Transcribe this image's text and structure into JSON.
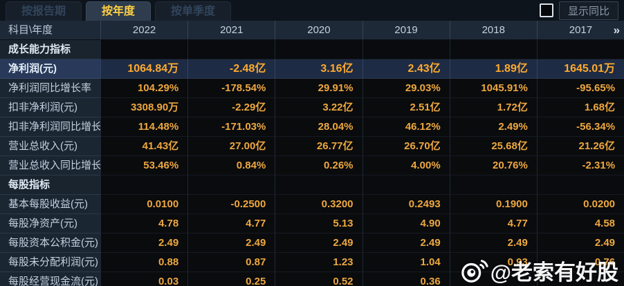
{
  "tabs": [
    {
      "label": "按报告期",
      "active": false
    },
    {
      "label": "按年度",
      "active": true
    },
    {
      "label": "按单季度",
      "active": false
    }
  ],
  "controls": {
    "show_yoy_label": "显示同比",
    "checkbox_checked": false
  },
  "table": {
    "corner_header": "科目\\年度",
    "years": [
      "2022",
      "2021",
      "2020",
      "2019",
      "2018",
      "2017"
    ],
    "more_icon": "»",
    "rows": [
      {
        "type": "section",
        "label": "成长能力指标"
      },
      {
        "type": "data",
        "highlight": true,
        "label": "净利润(元)",
        "values": [
          "1064.84万",
          "-2.48亿",
          "3.16亿",
          "2.43亿",
          "1.89亿",
          "1645.01万"
        ]
      },
      {
        "type": "data",
        "label": "净利润同比增长率",
        "values": [
          "104.29%",
          "-178.54%",
          "29.91%",
          "29.03%",
          "1045.91%",
          "-95.65%"
        ]
      },
      {
        "type": "data",
        "label": "扣非净利润(元)",
        "values": [
          "3308.90万",
          "-2.29亿",
          "3.22亿",
          "2.51亿",
          "1.72亿",
          "1.68亿"
        ]
      },
      {
        "type": "data",
        "label": "扣非净利润同比增长率",
        "values": [
          "114.48%",
          "-171.03%",
          "28.04%",
          "46.12%",
          "2.49%",
          "-56.34%"
        ]
      },
      {
        "type": "data",
        "label": "营业总收入(元)",
        "values": [
          "41.43亿",
          "27.00亿",
          "26.77亿",
          "26.70亿",
          "25.68亿",
          "21.26亿"
        ]
      },
      {
        "type": "data",
        "label": "营业总收入同比增长率",
        "values": [
          "53.46%",
          "0.84%",
          "0.26%",
          "4.00%",
          "20.76%",
          "-2.31%"
        ]
      },
      {
        "type": "section",
        "label": "每股指标"
      },
      {
        "type": "data",
        "label": "基本每股收益(元)",
        "values": [
          "0.0100",
          "-0.2500",
          "0.3200",
          "0.2493",
          "0.1900",
          "0.0200"
        ]
      },
      {
        "type": "data",
        "label": "每股净资产(元)",
        "values": [
          "4.78",
          "4.77",
          "5.13",
          "4.90",
          "4.77",
          "4.58"
        ]
      },
      {
        "type": "data",
        "label": "每股资本公积金(元)",
        "values": [
          "2.49",
          "2.49",
          "2.49",
          "2.49",
          "2.49",
          "2.49"
        ]
      },
      {
        "type": "data",
        "label": "每股未分配利润(元)",
        "values": [
          "0.88",
          "0.87",
          "1.23",
          "1.04",
          "0.93",
          "0.76"
        ]
      },
      {
        "type": "data",
        "label": "每股经营现金流(元)",
        "values": [
          "0.03",
          "0.25",
          "0.52",
          "0.36",
          "",
          ""
        ]
      }
    ]
  },
  "watermark": {
    "handle": "@老索有好股"
  },
  "colors": {
    "value_orange": "#eea83f",
    "highlight_value_orange": "#ffab2e",
    "tab_active_text": "#ffd043",
    "highlight_row_bg": "#1e2b44",
    "label_column_bg": "#1b2633",
    "header_row_bg": "#1d2937",
    "data_cell_bg": "#0a0b0d"
  }
}
